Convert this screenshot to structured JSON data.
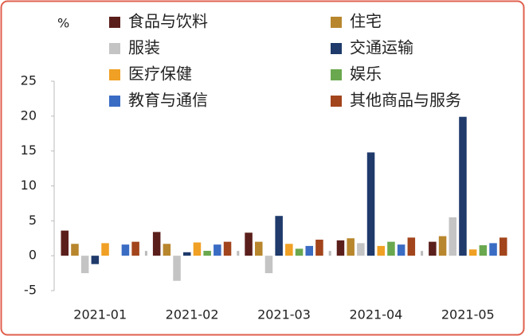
{
  "chart_data": {
    "type": "bar",
    "y_unit": "%",
    "categories": [
      "2021-01",
      "2021-02",
      "2021-03",
      "2021-04",
      "2021-05"
    ],
    "series": [
      {
        "name": "食品与饮料",
        "color": "#5b1f1b",
        "values": [
          3.6,
          3.4,
          3.3,
          2.2,
          2.0
        ]
      },
      {
        "name": "住宅",
        "color": "#b8862d",
        "values": [
          1.7,
          1.7,
          2.0,
          2.5,
          2.8
        ]
      },
      {
        "name": "服装",
        "color": "#c4c4c4",
        "values": [
          -2.5,
          -3.6,
          -2.5,
          1.8,
          5.5
        ]
      },
      {
        "name": "交通运输",
        "color": "#1f3a6b",
        "values": [
          -1.2,
          0.5,
          5.7,
          14.8,
          19.9
        ]
      },
      {
        "name": "医疗保健",
        "color": "#f0a024",
        "values": [
          1.8,
          1.9,
          1.7,
          1.4,
          0.9
        ]
      },
      {
        "name": "娱乐",
        "color": "#6aa84f",
        "values": [
          0,
          0.7,
          1.0,
          2.0,
          1.5
        ]
      },
      {
        "name": "教育与通信",
        "color": "#3a6cc4",
        "values": [
          1.6,
          1.6,
          1.4,
          1.6,
          1.8
        ]
      },
      {
        "name": "其他商品与服务",
        "color": "#a2441c",
        "values": [
          2.0,
          2.0,
          2.3,
          2.6,
          2.6
        ]
      }
    ],
    "ylim": [
      -5,
      25
    ],
    "yticks": [
      -5,
      0,
      5,
      10,
      15,
      20,
      25
    ]
  }
}
